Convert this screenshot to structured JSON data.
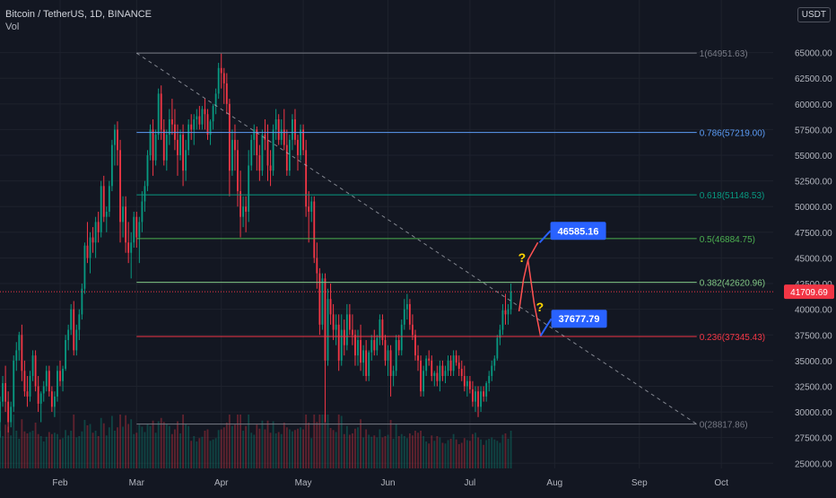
{
  "header": {
    "symbol": "Bitcoin / TetherUS, 1D, BINANCE",
    "indicator": "Vol",
    "currency_badge": "USDT"
  },
  "chart_data": {
    "type": "candlestick",
    "ylim": [
      24500,
      67500
    ],
    "price_ticks": [
      "65000.00",
      "62500.00",
      "60000.00",
      "57500.00",
      "55000.00",
      "52500.00",
      "50000.00",
      "47500.00",
      "45000.00",
      "42500.00",
      "40000.00",
      "37500.00",
      "35000.00",
      "32500.00",
      "30000.00",
      "27500.00",
      "25000.00"
    ],
    "price_tick_values": [
      65000,
      62500,
      60000,
      57500,
      55000,
      52500,
      50000,
      47500,
      45000,
      42500,
      40000,
      37500,
      35000,
      32500,
      30000,
      27500,
      25000
    ],
    "months": [
      {
        "label": "Feb",
        "date": "2021-02-01"
      },
      {
        "label": "Mar",
        "date": "2021-03-01"
      },
      {
        "label": "Apr",
        "date": "2021-04-01"
      },
      {
        "label": "May",
        "date": "2021-05-01"
      },
      {
        "label": "Jun",
        "date": "2021-06-01"
      },
      {
        "label": "Jul",
        "date": "2021-07-01"
      },
      {
        "label": "Aug",
        "date": "2021-08-01"
      },
      {
        "label": "Sep",
        "date": "2021-09-01"
      },
      {
        "label": "Oct",
        "date": "2021-10-01"
      }
    ],
    "x_range": [
      "2021-01-10",
      "2021-10-20"
    ],
    "last_price": {
      "label": "41709.69",
      "value": 41709.69,
      "color": "#f23645"
    },
    "fib_levels": [
      {
        "ratio": "1",
        "value": 64951.63,
        "label": "1(64951.63)",
        "color": "#787b86"
      },
      {
        "ratio": "0.786",
        "value": 57219.0,
        "label": "0.786(57219.00)",
        "color": "#5b9cf6"
      },
      {
        "ratio": "0.618",
        "value": 51148.53,
        "label": "0.618(51148.53)",
        "color": "#089981"
      },
      {
        "ratio": "0.5",
        "value": 46884.75,
        "label": "0.5(46884.75)",
        "color": "#4caf50"
      },
      {
        "ratio": "0.382",
        "value": 42620.96,
        "label": "0.382(42620.96)",
        "color": "#81c784"
      },
      {
        "ratio": "0.236",
        "value": 37345.43,
        "label": "0.236(37345.43)",
        "color": "#f23645"
      },
      {
        "ratio": "0",
        "value": 28817.86,
        "label": "0(28817.86)",
        "color": "#787b86"
      }
    ],
    "fib_start_date": "2021-03-01",
    "fib_end_date": "2021-09-22",
    "trendline": {
      "from": {
        "date": "2021-03-01",
        "value": 64951.63
      },
      "to": {
        "date": "2021-09-22",
        "value": 28817.86
      }
    },
    "targets": [
      {
        "label": "46585.16",
        "value": 46585.16,
        "color": "#2962ff"
      },
      {
        "label": "37677.79",
        "value": 37677.79,
        "color": "#2962ff"
      }
    ],
    "question_marks": [
      "?",
      "?"
    ],
    "colors": {
      "up": "#089981",
      "down": "#f23645",
      "grid": "#1e222d",
      "text": "#b2b5be",
      "projection": "#ff5252",
      "question": "#ffd600"
    },
    "candles_ohlc": [
      [
        29000,
        31500,
        27500,
        31000
      ],
      [
        31000,
        33500,
        30500,
        32800
      ],
      [
        32800,
        34500,
        30000,
        31000
      ],
      [
        31000,
        32000,
        28000,
        29000
      ],
      [
        29000,
        31000,
        28500,
        30500
      ],
      [
        30500,
        35500,
        30000,
        35000
      ],
      [
        35000,
        36800,
        34000,
        36000
      ],
      [
        36000,
        37800,
        35000,
        37500
      ],
      [
        37500,
        38500,
        33000,
        34000
      ],
      [
        34000,
        35000,
        31500,
        32000
      ],
      [
        32000,
        33500,
        30500,
        31500
      ],
      [
        31500,
        34000,
        31000,
        33500
      ],
      [
        33500,
        36000,
        33000,
        35500
      ],
      [
        35500,
        36000,
        32000,
        32500
      ],
      [
        32500,
        33500,
        30000,
        30800
      ],
      [
        30800,
        32000,
        29000,
        31800
      ],
      [
        31800,
        33000,
        31000,
        32500
      ],
      [
        32500,
        34500,
        32000,
        34000
      ],
      [
        34000,
        34500,
        31500,
        32000
      ],
      [
        32000,
        32500,
        30000,
        30500
      ],
      [
        30500,
        32000,
        29500,
        31500
      ],
      [
        31500,
        34500,
        31000,
        34000
      ],
      [
        34000,
        35000,
        32500,
        33000
      ],
      [
        33000,
        34500,
        32000,
        34200
      ],
      [
        34200,
        37500,
        34000,
        37000
      ],
      [
        37000,
        38500,
        36000,
        38000
      ],
      [
        38000,
        40500,
        37500,
        40000
      ],
      [
        40000,
        40800,
        35500,
        36000
      ],
      [
        36000,
        38500,
        35500,
        38000
      ],
      [
        38000,
        40000,
        37000,
        39500
      ],
      [
        39500,
        42500,
        39000,
        42000
      ],
      [
        42000,
        46500,
        41500,
        46200
      ],
      [
        46200,
        48500,
        44500,
        45000
      ],
      [
        45000,
        47500,
        43500,
        47000
      ],
      [
        47000,
        48000,
        45500,
        46500
      ],
      [
        46500,
        49000,
        45000,
        48500
      ],
      [
        48500,
        49500,
        46500,
        47500
      ],
      [
        47500,
        52500,
        47000,
        52000
      ],
      [
        52000,
        53000,
        48500,
        49000
      ],
      [
        49000,
        50000,
        47500,
        49500
      ],
      [
        49500,
        52500,
        49000,
        52000
      ],
      [
        52000,
        56500,
        51500,
        56000
      ],
      [
        56000,
        58000,
        54000,
        57500
      ],
      [
        57500,
        58300,
        54000,
        55500
      ],
      [
        55500,
        56500,
        46500,
        48500
      ],
      [
        48500,
        51000,
        47000,
        50000
      ],
      [
        50000,
        51000,
        45500,
        46500
      ],
      [
        46500,
        48500,
        44500,
        45500
      ],
      [
        45500,
        47500,
        43000,
        46500
      ],
      [
        46500,
        49500,
        46000,
        49000
      ],
      [
        49000,
        49500,
        46000,
        47000
      ],
      [
        47000,
        49000,
        44500,
        48500
      ],
      [
        48500,
        51500,
        47500,
        50500
      ],
      [
        50500,
        52500,
        49500,
        52000
      ],
      [
        52000,
        55500,
        51500,
        55000
      ],
      [
        55000,
        58000,
        54500,
        57500
      ],
      [
        57500,
        58500,
        53000,
        54500
      ],
      [
        54500,
        57500,
        54000,
        57000
      ],
      [
        57000,
        61500,
        56500,
        61000
      ],
      [
        61000,
        61800,
        56500,
        57500
      ],
      [
        57500,
        58500,
        54000,
        54500
      ],
      [
        54500,
        57500,
        53500,
        57000
      ],
      [
        57000,
        59500,
        56000,
        58500
      ],
      [
        58500,
        60500,
        57000,
        58000
      ],
      [
        58000,
        59500,
        55500,
        56500
      ],
      [
        56500,
        58000,
        53000,
        55000
      ],
      [
        55000,
        57500,
        54500,
        57000
      ],
      [
        57000,
        58000,
        52000,
        53500
      ],
      [
        53500,
        56500,
        52500,
        55500
      ],
      [
        55500,
        58500,
        55000,
        58000
      ],
      [
        58000,
        59000,
        56500,
        57500
      ],
      [
        57500,
        59000,
        56000,
        58500
      ],
      [
        58500,
        59500,
        57500,
        58800
      ],
      [
        58800,
        59800,
        57500,
        58000
      ],
      [
        58000,
        59800,
        57500,
        59500
      ],
      [
        59500,
        60500,
        57500,
        59000
      ],
      [
        59000,
        59500,
        56500,
        57000
      ],
      [
        57000,
        58500,
        56000,
        58300
      ],
      [
        58300,
        60000,
        57500,
        59800
      ],
      [
        59800,
        61500,
        59000,
        61000
      ],
      [
        61000,
        64000,
        60500,
        63500
      ],
      [
        63500,
        64900,
        61500,
        63000
      ],
      [
        63000,
        63500,
        60000,
        62000
      ],
      [
        62000,
        63000,
        59000,
        60000
      ],
      [
        60000,
        60500,
        51000,
        53500
      ],
      [
        53500,
        57500,
        53000,
        56500
      ],
      [
        56500,
        58000,
        53500,
        55500
      ],
      [
        55500,
        56500,
        50000,
        51500
      ],
      [
        51500,
        53500,
        47000,
        49000
      ],
      [
        49000,
        51000,
        48000,
        50000
      ],
      [
        50000,
        51000,
        47500,
        49500
      ],
      [
        49500,
        55500,
        48500,
        54000
      ],
      [
        54000,
        57000,
        53500,
        56500
      ],
      [
        56500,
        58000,
        55000,
        57500
      ],
      [
        57500,
        57800,
        53500,
        55000
      ],
      [
        55000,
        56000,
        52500,
        53500
      ],
      [
        53500,
        57500,
        53000,
        57000
      ],
      [
        57000,
        58500,
        55500,
        56500
      ],
      [
        56500,
        58000,
        52500,
        54000
      ],
      [
        54000,
        55500,
        52000,
        53500
      ],
      [
        53500,
        58000,
        53000,
        57500
      ],
      [
        57500,
        59500,
        56500,
        58500
      ],
      [
        58500,
        59000,
        56000,
        56500
      ],
      [
        56500,
        58500,
        56000,
        57500
      ],
      [
        57500,
        59500,
        55500,
        56000
      ],
      [
        56000,
        57500,
        53000,
        53500
      ],
      [
        53500,
        57000,
        53000,
        56500
      ],
      [
        56500,
        59000,
        55500,
        58500
      ],
      [
        58500,
        59500,
        56000,
        56500
      ],
      [
        56500,
        57000,
        53500,
        55000
      ],
      [
        55000,
        58000,
        54500,
        57500
      ],
      [
        57500,
        58000,
        55000,
        55500
      ],
      [
        55500,
        56500,
        49000,
        50000
      ],
      [
        50000,
        51500,
        46500,
        49500
      ],
      [
        49500,
        51000,
        48500,
        50500
      ],
      [
        50500,
        51000,
        44500,
        45000
      ],
      [
        45000,
        46500,
        42000,
        43500
      ],
      [
        43500,
        44000,
        37500,
        38500
      ],
      [
        38500,
        43500,
        38000,
        43000
      ],
      [
        43000,
        43500,
        29000,
        35000
      ],
      [
        35000,
        42000,
        34500,
        41000
      ],
      [
        41000,
        42500,
        38500,
        39500
      ],
      [
        39500,
        40500,
        37000,
        38000
      ],
      [
        38000,
        39500,
        36500,
        38500
      ],
      [
        38500,
        39500,
        34000,
        35000
      ],
      [
        35000,
        39500,
        34500,
        38000
      ],
      [
        38000,
        39000,
        35500,
        36500
      ],
      [
        36500,
        40500,
        36000,
        39500
      ],
      [
        39500,
        40500,
        37500,
        38000
      ],
      [
        38000,
        39500,
        36500,
        37500
      ],
      [
        37500,
        38000,
        34500,
        35500
      ],
      [
        35500,
        38000,
        34500,
        37000
      ],
      [
        37000,
        38500,
        34000,
        34800
      ],
      [
        34800,
        36500,
        33500,
        36000
      ],
      [
        36000,
        37000,
        33000,
        33500
      ],
      [
        33500,
        36000,
        33000,
        35800
      ],
      [
        35800,
        37500,
        35000,
        37000
      ],
      [
        37000,
        38000,
        35500,
        36000
      ],
      [
        36000,
        37500,
        35500,
        37200
      ],
      [
        37200,
        39500,
        36500,
        39000
      ],
      [
        39000,
        39500,
        36500,
        37000
      ],
      [
        37000,
        37500,
        34500,
        35000
      ],
      [
        35000,
        36500,
        33500,
        36000
      ],
      [
        36000,
        36500,
        31500,
        33500
      ],
      [
        33500,
        34500,
        32500,
        34000
      ],
      [
        34000,
        37500,
        33500,
        37000
      ],
      [
        37000,
        37500,
        35500,
        36000
      ],
      [
        36000,
        39000,
        35500,
        38500
      ],
      [
        38500,
        41000,
        38000,
        40000
      ],
      [
        40000,
        41500,
        39000,
        40500
      ],
      [
        40500,
        41000,
        38000,
        38500
      ],
      [
        38500,
        39500,
        37000,
        37500
      ],
      [
        37500,
        38000,
        35000,
        35500
      ],
      [
        35500,
        36500,
        34000,
        35000
      ],
      [
        35000,
        35500,
        31500,
        32000
      ],
      [
        32000,
        34500,
        31500,
        34000
      ],
      [
        34000,
        35500,
        33500,
        35200
      ],
      [
        35200,
        36000,
        34500,
        35000
      ],
      [
        35000,
        35500,
        33000,
        33500
      ],
      [
        33500,
        34000,
        32500,
        33800
      ],
      [
        33800,
        34500,
        32500,
        33000
      ],
      [
        33000,
        35000,
        32000,
        34500
      ],
      [
        34500,
        35000,
        33000,
        33500
      ],
      [
        33500,
        34500,
        32800,
        34000
      ],
      [
        34000,
        35500,
        33500,
        35000
      ],
      [
        35000,
        35500,
        33500,
        34000
      ],
      [
        34000,
        36000,
        33500,
        35500
      ],
      [
        35500,
        36000,
        34500,
        34800
      ],
      [
        34800,
        35500,
        33500,
        34200
      ],
      [
        34200,
        35000,
        33000,
        33500
      ],
      [
        33500,
        34500,
        32000,
        32500
      ],
      [
        32500,
        33500,
        31500,
        33000
      ],
      [
        33000,
        33500,
        31800,
        32200
      ],
      [
        32200,
        33000,
        30500,
        31000
      ],
      [
        31000,
        32500,
        30000,
        32000
      ],
      [
        32000,
        32500,
        29500,
        30500
      ],
      [
        30500,
        32500,
        30000,
        32000
      ],
      [
        32000,
        32500,
        31000,
        31500
      ],
      [
        31500,
        33000,
        31000,
        32800
      ],
      [
        32800,
        34000,
        32000,
        33500
      ],
      [
        33500,
        35000,
        33000,
        34500
      ],
      [
        34500,
        35500,
        34000,
        35200
      ],
      [
        35200,
        37500,
        35000,
        37200
      ],
      [
        37200,
        38500,
        36500,
        38000
      ],
      [
        38000,
        40500,
        37500,
        39900
      ],
      [
        39900,
        41500,
        38500,
        39500
      ],
      [
        39500,
        40500,
        38500,
        40000
      ],
      [
        40000,
        42500,
        39500,
        41709.69
      ]
    ],
    "candles_start_date": "2021-01-10"
  }
}
